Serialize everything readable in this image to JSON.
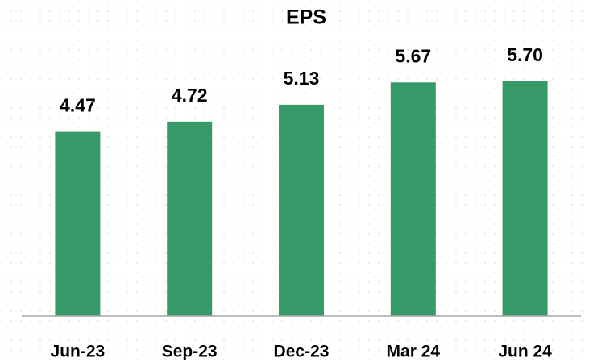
{
  "chart_data": {
    "type": "bar",
    "title": "EPS",
    "categories": [
      "Jun-23",
      "Sep-23",
      "Dec-23",
      "Mar 24",
      "Jun 24"
    ],
    "values": [
      4.47,
      4.72,
      5.13,
      5.67,
      5.7
    ],
    "value_labels": [
      "4.47",
      "4.72",
      "5.13",
      "5.67",
      "5.70"
    ],
    "color": "#359a68",
    "ylim": [
      0,
      6
    ]
  }
}
